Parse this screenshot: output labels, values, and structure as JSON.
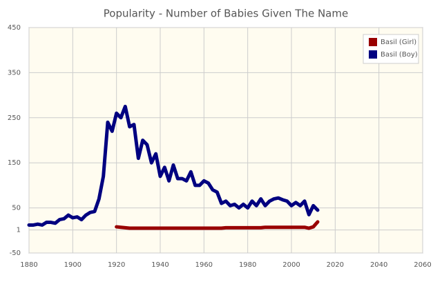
{
  "chart_data": {
    "type": "line",
    "title": "Popularity - Number of Babies Given The Name",
    "x": [
      1880,
      1882,
      1884,
      1886,
      1888,
      1890,
      1892,
      1894,
      1896,
      1898,
      1900,
      1902,
      1904,
      1906,
      1908,
      1910,
      1912,
      1914,
      1916,
      1918,
      1920,
      1922,
      1924,
      1926,
      1928,
      1930,
      1932,
      1934,
      1936,
      1938,
      1940,
      1942,
      1944,
      1946,
      1948,
      1950,
      1952,
      1954,
      1956,
      1958,
      1960,
      1962,
      1964,
      1966,
      1968,
      1970,
      1972,
      1974,
      1976,
      1978,
      1980,
      1982,
      1984,
      1986,
      1988,
      1990,
      1992,
      1994,
      1996,
      1998,
      2000,
      2002,
      2004,
      2006,
      2008,
      2010,
      2012
    ],
    "series": [
      {
        "name": "Basil (Girl)",
        "color": "#990000",
        "values": [
          null,
          null,
          null,
          null,
          null,
          null,
          null,
          null,
          null,
          null,
          null,
          null,
          null,
          null,
          null,
          null,
          null,
          null,
          null,
          null,
          8,
          7,
          6,
          5,
          5,
          5,
          5,
          5,
          5,
          5,
          5,
          5,
          5,
          5,
          5,
          5,
          5,
          5,
          5,
          5,
          5,
          5,
          5,
          5,
          5,
          6,
          6,
          6,
          6,
          6,
          6,
          6,
          6,
          6,
          7,
          7,
          7,
          7,
          7,
          7,
          7,
          7,
          7,
          7,
          5,
          8,
          19
        ]
      },
      {
        "name": "Basil (Boy)",
        "color": "#000080",
        "values": [
          12,
          12,
          14,
          12,
          18,
          18,
          16,
          24,
          26,
          34,
          28,
          30,
          24,
          34,
          40,
          42,
          70,
          120,
          240,
          220,
          260,
          250,
          275,
          230,
          235,
          160,
          200,
          190,
          150,
          170,
          120,
          140,
          110,
          145,
          115,
          115,
          110,
          130,
          100,
          100,
          110,
          105,
          90,
          85,
          60,
          65,
          55,
          58,
          50,
          58,
          50,
          65,
          55,
          70,
          55,
          65,
          70,
          72,
          68,
          65,
          55,
          62,
          55,
          65,
          35,
          55,
          45
        ]
      }
    ],
    "xlim": [
      1880,
      2060
    ],
    "xticks": [
      1880,
      1900,
      1920,
      1940,
      1960,
      1980,
      2000,
      2020,
      2040,
      2060
    ],
    "ylim": [
      -50,
      450
    ],
    "yticks": [
      -50,
      1,
      50,
      150,
      250,
      350,
      450
    ],
    "grid": true,
    "legend": "top-right"
  }
}
